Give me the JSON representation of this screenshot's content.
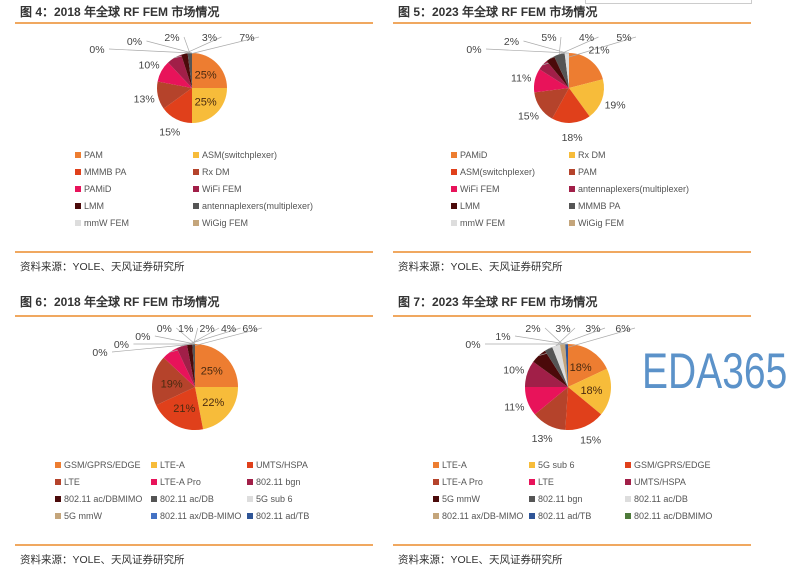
{
  "source": "资料来源：YOLE、天风证券研究所",
  "watermark": "EDA365",
  "chart_data": [
    {
      "type": "pie",
      "title": "图 4：2018 年全球 RF FEM 市场情况",
      "labels": [
        "PAM",
        "ASM(switchplexer)",
        "MMMB PA",
        "Rx DM",
        "PAMiD",
        "WiFi FEM",
        "LMM",
        "antennaplexers(multiplexer)",
        "mmW FEM",
        "WiGig FEM"
      ],
      "values": [
        25,
        25,
        15,
        13,
        10,
        7,
        3,
        2,
        0,
        0
      ],
      "colors": [
        "#ED7D31",
        "#F7BC3A",
        "#E0401B",
        "#B5432B",
        "#E8135A",
        "#A11F48",
        "#4B0A0A",
        "#555555",
        "#DDDDDD",
        "#C4A57B"
      ],
      "legend_cols": 2
    },
    {
      "type": "pie",
      "title": "图 5：2023 年全球 RF FEM 市场情况",
      "labels": [
        "PAMiD",
        "Rx DM",
        "ASM(switchplexer)",
        "PAM",
        "WiFi FEM",
        "antennaplexers(multiplexer)",
        "LMM",
        "MMMB PA",
        "mmW FEM",
        "WiGig FEM"
      ],
      "values": [
        21,
        19,
        18,
        15,
        11,
        5,
        4,
        5,
        2,
        0
      ],
      "colors": [
        "#ED7D31",
        "#F7BC3A",
        "#E0401B",
        "#B5432B",
        "#E8135A",
        "#A11F48",
        "#4B0A0A",
        "#555555",
        "#DDDDDD",
        "#C4A57B"
      ],
      "legend_cols": 2
    },
    {
      "type": "pie",
      "title": "图 6：2018 年全球 RF FEM 市场情况",
      "labels": [
        "GSM/GPRS/EDGE",
        "LTE-A",
        "UMTS/HSPA",
        "LTE",
        "LTE-A Pro",
        "802.11 bgn",
        "802.11 ac/DBMIMO",
        "802.11 ac/DB",
        "5G sub 6",
        "5G mmW",
        "802.11 ax/DB-MIMO",
        "802.11 ad/TB"
      ],
      "values": [
        25,
        22,
        21,
        19,
        6,
        4,
        2,
        1,
        0,
        0,
        0,
        0
      ],
      "colors": [
        "#ED7D31",
        "#F7BC3A",
        "#E0401B",
        "#B5432B",
        "#E8135A",
        "#A11F48",
        "#4B0A0A",
        "#555555",
        "#DDDDDD",
        "#C4A57B",
        "#4472C4",
        "#2F5597"
      ],
      "legend_cols": 3
    },
    {
      "type": "pie",
      "title": "图 7：2023 年全球 RF FEM 市场情况",
      "labels": [
        "LTE-A",
        "5G sub 6",
        "GSM/GPRS/EDGE",
        "LTE-A Pro",
        "LTE",
        "UMTS/HSPA",
        "5G mmW",
        "802.11 bgn",
        "802.11 ac/DB",
        "802.11 ax/DB-MIMO",
        "802.11 ad/TB",
        "802.11 ac/DBMIMO"
      ],
      "values": [
        18,
        18,
        15,
        13,
        11,
        10,
        6,
        3,
        3,
        2,
        1,
        0
      ],
      "colors": [
        "#ED7D31",
        "#F7BC3A",
        "#E0401B",
        "#B5432B",
        "#E8135A",
        "#A11F48",
        "#4B0A0A",
        "#555555",
        "#DDDDDD",
        "#C4A57B",
        "#2F5597",
        "#4E7A3A"
      ],
      "legend_cols": 3
    }
  ]
}
